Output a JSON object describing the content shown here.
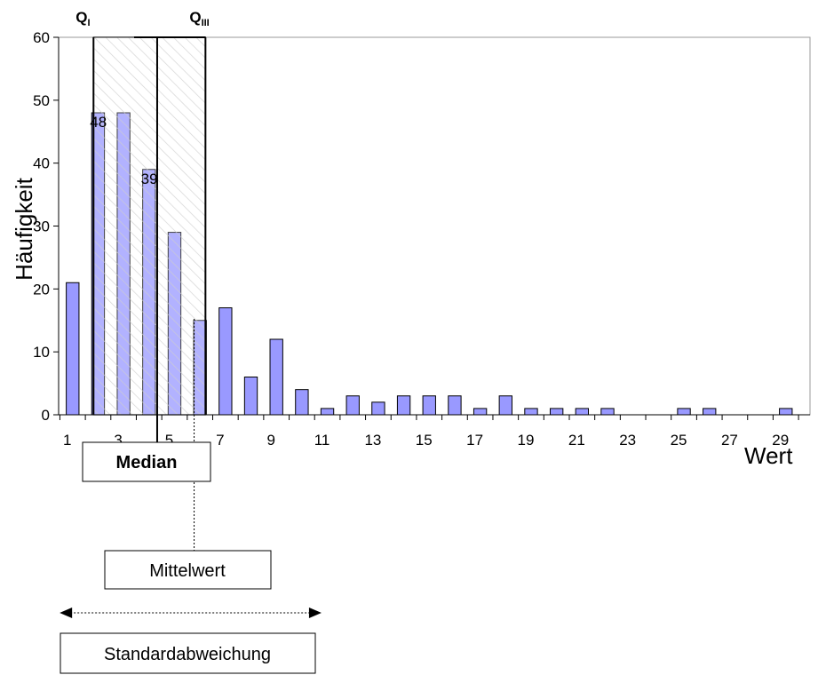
{
  "chart_data": {
    "type": "bar",
    "xlabel": "Wert",
    "ylabel": "Häufigkeit",
    "ylim": [
      0,
      60
    ],
    "yticks": [
      "0",
      "10",
      "20",
      "30",
      "40",
      "50",
      "60"
    ],
    "x": [
      1,
      2,
      3,
      4,
      5,
      6,
      7,
      8,
      9,
      10,
      11,
      12,
      13,
      14,
      15,
      16,
      17,
      18,
      19,
      20,
      21,
      22,
      23,
      24,
      25,
      26,
      27,
      28,
      29
    ],
    "xticks": [
      "1",
      "3",
      "5",
      "7",
      "9",
      "11",
      "13",
      "15",
      "17",
      "19",
      "21",
      "23",
      "25",
      "27",
      "29"
    ],
    "values": [
      21,
      48,
      48,
      39,
      29,
      15,
      17,
      6,
      12,
      4,
      1,
      3,
      2,
      3,
      3,
      3,
      1,
      3,
      1,
      1,
      1,
      1,
      0,
      0,
      1,
      1,
      0,
      0,
      1
    ],
    "data_labels": {
      "2": "48",
      "4": "39"
    },
    "bar_color": "#9999ff",
    "grid": false,
    "annotations": {
      "q1": {
        "letter": "Q",
        "sub": "I",
        "x": 2
      },
      "q3": {
        "letter": "Q",
        "sub": "III",
        "x": 6
      },
      "median": {
        "label": "Median",
        "x": 4
      },
      "mean": {
        "label": "Mittelwert",
        "x": 5.7
      },
      "std": {
        "label": "Standardabweichung",
        "from": 0.7,
        "to": 10.7
      }
    }
  }
}
